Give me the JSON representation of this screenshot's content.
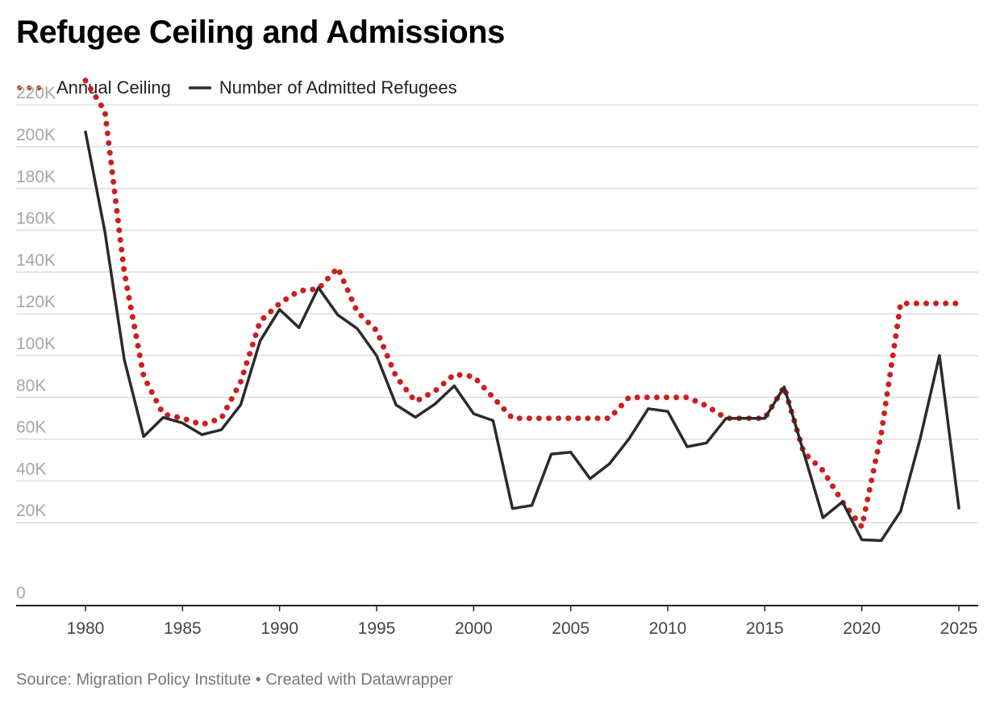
{
  "title": "Refugee Ceiling and Admissions",
  "legend": {
    "ceiling": "Annual Ceiling",
    "admitted": "Number of Admitted Refugees"
  },
  "footer": "Source: Migration Policy Institute • Created with Datawrapper",
  "colors": {
    "ceiling": "#cc1f1f",
    "admitted": "#2b2b2b",
    "grid": "#dddddd"
  },
  "chart_data": {
    "type": "line",
    "x": [
      1980,
      1981,
      1982,
      1983,
      1984,
      1985,
      1986,
      1987,
      1988,
      1989,
      1990,
      1991,
      1992,
      1993,
      1994,
      1995,
      1996,
      1997,
      1998,
      1999,
      2000,
      2001,
      2002,
      2003,
      2004,
      2005,
      2006,
      2007,
      2008,
      2009,
      2010,
      2011,
      2012,
      2013,
      2014,
      2015,
      2016,
      2017,
      2018,
      2019,
      2020,
      2021,
      2022,
      2023,
      2024,
      2025
    ],
    "series": [
      {
        "name": "Annual Ceiling",
        "style": "dotted",
        "values": [
          231700,
          217000,
          140000,
          90000,
          72000,
          70000,
          67000,
          70000,
          87500,
          116500,
          125000,
          131000,
          132000,
          142000,
          121000,
          112000,
          90000,
          78000,
          83000,
          91000,
          90000,
          80000,
          70000,
          70000,
          70000,
          70000,
          70000,
          70000,
          80000,
          80000,
          80000,
          80000,
          76000,
          70000,
          70000,
          70000,
          85000,
          53716,
          45000,
          30000,
          18000,
          62500,
          125000,
          125000,
          125000,
          125000
        ]
      },
      {
        "name": "Number of Admitted Refugees",
        "style": "solid",
        "values": [
          207116,
          159252,
          98096,
          61218,
          70393,
          67704,
          62146,
          64528,
          76483,
          107070,
          122066,
          113389,
          132531,
          119448,
          112981,
          99974,
          76403,
          70488,
          76750,
          85525,
          72143,
          68925,
          26765,
          28286,
          52840,
          53738,
          41094,
          48218,
          60107,
          74602,
          73293,
          56384,
          58179,
          69926,
          69975,
          69920,
          84994,
          53716,
          22405,
          30000,
          11814,
          11411,
          25465,
          60014,
          100034,
          27000
        ]
      }
    ],
    "x_ticks": [
      1980,
      1985,
      1990,
      1995,
      2000,
      2005,
      2010,
      2015,
      2020,
      2025
    ],
    "y_ticks": [
      0,
      20000,
      40000,
      60000,
      80000,
      100000,
      120000,
      140000,
      160000,
      180000,
      200000,
      220000
    ],
    "y_tick_labels": [
      "0",
      "20K",
      "40K",
      "60K",
      "80K",
      "100K",
      "120K",
      "140K",
      "160K",
      "180K",
      "200K",
      "220K"
    ],
    "xlim": [
      1980,
      2025
    ],
    "ylim": [
      0,
      220000
    ],
    "legend_position": "top-left",
    "grid": true
  }
}
